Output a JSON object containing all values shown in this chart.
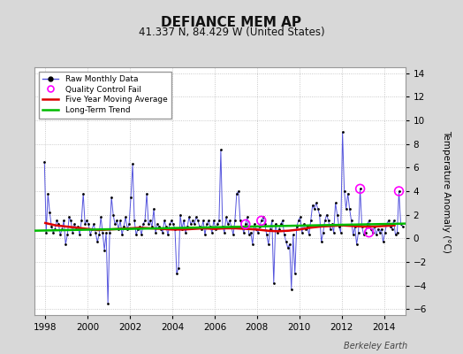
{
  "title": "DEFIANCE MEM AP",
  "subtitle": "41.337 N, 84.429 W (United States)",
  "ylabel": "Temperature Anomaly (°C)",
  "watermark": "Berkeley Earth",
  "xlim": [
    1997.5,
    2015.0
  ],
  "ylim": [
    -6.5,
    14.5
  ],
  "yticks": [
    -6,
    -4,
    -2,
    0,
    2,
    4,
    6,
    8,
    10,
    12,
    14
  ],
  "xticks": [
    1998,
    2000,
    2002,
    2004,
    2006,
    2008,
    2010,
    2012,
    2014
  ],
  "background_color": "#d8d8d8",
  "plot_bg_color": "#ffffff",
  "grid_color": "#bbbbbb",
  "raw_color": "#5555dd",
  "dot_color": "#000000",
  "ma_color": "#dd0000",
  "trend_color": "#00bb00",
  "qc_color": "#ff00ff",
  "raw_data": {
    "times": [
      1997.958,
      1998.042,
      1998.125,
      1998.208,
      1998.292,
      1998.375,
      1998.458,
      1998.542,
      1998.625,
      1998.708,
      1998.792,
      1998.875,
      1998.958,
      1999.042,
      1999.125,
      1999.208,
      1999.292,
      1999.375,
      1999.458,
      1999.542,
      1999.625,
      1999.708,
      1999.792,
      1999.875,
      1999.958,
      2000.042,
      2000.125,
      2000.208,
      2000.292,
      2000.375,
      2000.458,
      2000.542,
      2000.625,
      2000.708,
      2000.792,
      2000.875,
      2000.958,
      2001.042,
      2001.125,
      2001.208,
      2001.292,
      2001.375,
      2001.458,
      2001.542,
      2001.625,
      2001.708,
      2001.792,
      2001.875,
      2001.958,
      2002.042,
      2002.125,
      2002.208,
      2002.292,
      2002.375,
      2002.458,
      2002.542,
      2002.625,
      2002.708,
      2002.792,
      2002.875,
      2002.958,
      2003.042,
      2003.125,
      2003.208,
      2003.292,
      2003.375,
      2003.458,
      2003.542,
      2003.625,
      2003.708,
      2003.792,
      2003.875,
      2003.958,
      2004.042,
      2004.125,
      2004.208,
      2004.292,
      2004.375,
      2004.458,
      2004.542,
      2004.625,
      2004.708,
      2004.792,
      2004.875,
      2004.958,
      2005.042,
      2005.125,
      2005.208,
      2005.292,
      2005.375,
      2005.458,
      2005.542,
      2005.625,
      2005.708,
      2005.792,
      2005.875,
      2005.958,
      2006.042,
      2006.125,
      2006.208,
      2006.292,
      2006.375,
      2006.458,
      2006.542,
      2006.625,
      2006.708,
      2006.792,
      2006.875,
      2006.958,
      2007.042,
      2007.125,
      2007.208,
      2007.292,
      2007.375,
      2007.458,
      2007.542,
      2007.625,
      2007.708,
      2007.792,
      2007.875,
      2007.958,
      2008.042,
      2008.125,
      2008.208,
      2008.292,
      2008.375,
      2008.458,
      2008.542,
      2008.625,
      2008.708,
      2008.792,
      2008.875,
      2008.958,
      2009.042,
      2009.125,
      2009.208,
      2009.292,
      2009.375,
      2009.458,
      2009.542,
      2009.625,
      2009.708,
      2009.792,
      2009.875,
      2009.958,
      2010.042,
      2010.125,
      2010.208,
      2010.292,
      2010.375,
      2010.458,
      2010.542,
      2010.625,
      2010.708,
      2010.792,
      2010.875,
      2010.958,
      2011.042,
      2011.125,
      2011.208,
      2011.292,
      2011.375,
      2011.458,
      2011.542,
      2011.625,
      2011.708,
      2011.792,
      2011.875,
      2011.958,
      2012.042,
      2012.125,
      2012.208,
      2012.292,
      2012.375,
      2012.458,
      2012.542,
      2012.625,
      2012.708,
      2012.792,
      2012.875,
      2012.958,
      2013.042,
      2013.125,
      2013.208,
      2013.292,
      2013.375,
      2013.458,
      2013.542,
      2013.625,
      2013.708,
      2013.792,
      2013.875,
      2013.958,
      2014.042,
      2014.125,
      2014.208,
      2014.292,
      2014.375,
      2014.458,
      2014.542,
      2014.625,
      2014.708,
      2014.792,
      2014.875
    ],
    "values": [
      6.5,
      0.5,
      3.8,
      2.2,
      1.0,
      0.5,
      0.8,
      1.5,
      1.2,
      0.3,
      0.8,
      1.5,
      -0.5,
      0.3,
      1.8,
      1.5,
      0.5,
      1.2,
      0.8,
      1.0,
      0.3,
      1.5,
      3.8,
      1.2,
      1.5,
      1.2,
      0.3,
      0.8,
      1.2,
      0.5,
      -0.3,
      0.3,
      1.8,
      0.5,
      -1.0,
      0.5,
      -5.5,
      0.5,
      3.5,
      2.0,
      1.2,
      1.5,
      0.8,
      1.5,
      0.3,
      1.0,
      1.8,
      0.8,
      1.2,
      3.5,
      6.3,
      1.5,
      0.3,
      0.8,
      1.0,
      0.3,
      1.2,
      1.5,
      3.8,
      1.2,
      1.5,
      1.0,
      2.5,
      0.5,
      1.2,
      1.0,
      0.8,
      0.5,
      1.5,
      1.0,
      0.3,
      1.2,
      1.5,
      1.2,
      0.8,
      -3.0,
      -2.5,
      2.0,
      0.8,
      1.5,
      0.5,
      1.0,
      1.8,
      1.2,
      1.5,
      1.2,
      1.8,
      1.5,
      1.0,
      0.8,
      1.5,
      0.3,
      1.2,
      1.5,
      1.0,
      0.5,
      1.5,
      0.8,
      1.2,
      1.5,
      7.5,
      1.0,
      0.5,
      1.8,
      1.2,
      1.5,
      1.0,
      0.3,
      1.5,
      3.8,
      4.0,
      1.5,
      1.0,
      0.5,
      1.2,
      1.8,
      0.3,
      0.5,
      -0.5,
      1.2,
      0.8,
      0.5,
      1.0,
      1.5,
      1.8,
      1.2,
      0.3,
      -0.5,
      0.8,
      1.5,
      -3.8,
      1.2,
      0.5,
      0.8,
      1.2,
      1.5,
      0.3,
      -0.3,
      -0.8,
      -0.5,
      -4.3,
      0.3,
      -3.0,
      1.0,
      1.5,
      1.8,
      0.5,
      1.2,
      0.8,
      1.0,
      0.3,
      1.5,
      2.8,
      2.5,
      3.0,
      2.5,
      2.0,
      -0.3,
      0.5,
      1.5,
      2.0,
      1.5,
      0.8,
      1.2,
      0.5,
      3.0,
      2.0,
      1.0,
      0.5,
      9.0,
      4.0,
      2.5,
      3.8,
      2.5,
      1.5,
      0.3,
      1.0,
      -0.5,
      0.5,
      4.2,
      1.0,
      0.3,
      0.5,
      1.2,
      1.5,
      0.8,
      0.5,
      1.0,
      0.3,
      0.8,
      0.5,
      0.8,
      -0.3,
      0.5,
      1.2,
      1.5,
      1.0,
      0.8,
      1.5,
      0.3,
      0.5,
      4.0,
      1.2,
      1.0
    ]
  },
  "ma_data": {
    "times": [
      1998.0,
      1998.5,
      1999.0,
      1999.5,
      2000.0,
      2000.5,
      2001.0,
      2001.5,
      2002.0,
      2002.5,
      2003.0,
      2003.5,
      2004.0,
      2004.5,
      2005.0,
      2005.5,
      2006.0,
      2006.5,
      2007.0,
      2007.5,
      2008.0,
      2008.5,
      2009.0,
      2009.5,
      2010.0,
      2010.5,
      2011.0,
      2011.5,
      2012.0,
      2012.5,
      2013.0,
      2013.5,
      2014.0,
      2014.5
    ],
    "values": [
      1.3,
      1.1,
      1.0,
      0.9,
      0.8,
      0.7,
      0.75,
      0.8,
      0.85,
      0.9,
      0.85,
      0.8,
      0.75,
      0.75,
      0.8,
      0.85,
      0.8,
      0.85,
      0.85,
      0.8,
      0.75,
      0.65,
      0.6,
      0.65,
      0.75,
      0.9,
      1.0,
      1.05,
      1.1,
      1.05,
      1.0,
      1.0,
      1.05,
      1.1
    ]
  },
  "trend": {
    "times": [
      1997.5,
      2015.0
    ],
    "values": [
      0.65,
      1.25
    ]
  },
  "qc_points": {
    "times": [
      2007.458,
      2008.208,
      2012.875,
      2013.292,
      2014.708
    ],
    "values": [
      1.2,
      1.5,
      4.2,
      0.5,
      4.0
    ]
  }
}
